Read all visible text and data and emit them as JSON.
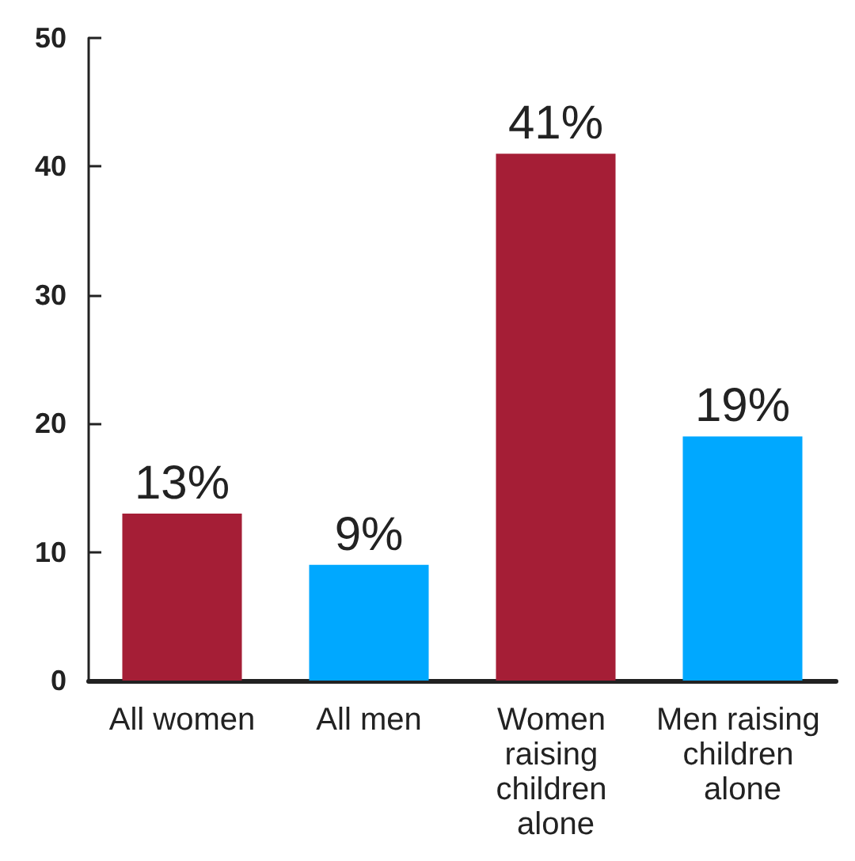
{
  "chart_data": {
    "type": "bar",
    "categories": [
      "All women",
      "All men",
      "Women raising children alone",
      "Men raising children alone"
    ],
    "values": [
      13,
      9,
      41,
      19
    ],
    "colors": [
      "#a51e36",
      "#00a8ff",
      "#a51e36",
      "#00a8ff"
    ],
    "value_labels": [
      "13%",
      "9%",
      "41%",
      "19%"
    ],
    "ylim": [
      0,
      50
    ],
    "yticks": [
      0,
      10,
      20,
      30,
      40,
      50
    ],
    "grid": false
  }
}
